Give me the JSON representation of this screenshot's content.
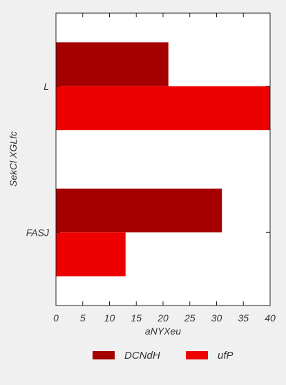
{
  "chart_data": {
    "type": "bar",
    "orientation": "horizontal",
    "title": "",
    "xlabel": "aNYXeu",
    "ylabel": "SekCl XGLfc",
    "categories": [
      "L",
      "FASJ"
    ],
    "series": [
      {
        "name": "DCNdH",
        "values": [
          21,
          31
        ],
        "color": "#a50000"
      },
      {
        "name": "ufP",
        "values": [
          40,
          13
        ],
        "color": "#ee0000"
      }
    ],
    "xlim": [
      0,
      40
    ],
    "xticks": [
      0,
      5,
      10,
      15,
      20,
      25,
      30,
      35,
      40
    ],
    "grid": false,
    "legend_position": "bottom"
  }
}
